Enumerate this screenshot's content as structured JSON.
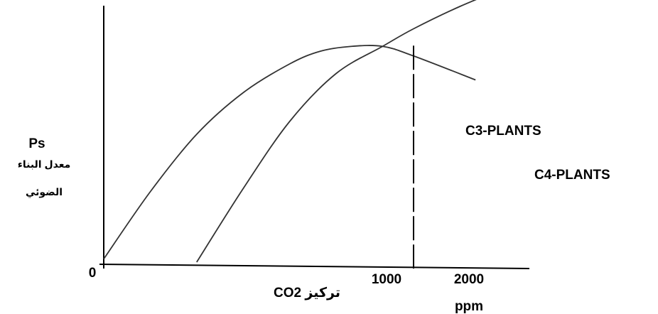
{
  "chart_data": {
    "type": "line",
    "title": "",
    "ylabel_main": "Ps",
    "ylabel_line1": "معدل البناء",
    "ylabel_line2": "الضوئي",
    "xlabel_text": "تركيز CO2",
    "x_unit": "ppm",
    "origin_label": "0",
    "x_ticks": [
      {
        "value": 1000,
        "label": "1000"
      },
      {
        "value": 2000,
        "label": "2000"
      }
    ],
    "xlim": [
      0,
      2700
    ],
    "ylim": [
      0,
      1
    ],
    "grid": false,
    "series": [
      {
        "name": "C3-PLANTS",
        "x": [
          600,
          900,
          1200,
          1500,
          1800,
          2000,
          2300,
          2700
        ],
        "y": [
          0.0,
          0.23,
          0.44,
          0.59,
          0.675,
          0.73,
          0.8,
          0.88
        ]
      },
      {
        "name": "C4-PLANTS",
        "x": [
          0,
          300,
          600,
          900,
          1200,
          1400,
          1600,
          1800,
          2000,
          2400
        ],
        "y": [
          0.01,
          0.22,
          0.4,
          0.53,
          0.62,
          0.66,
          0.675,
          0.675,
          0.645,
          0.57
        ]
      }
    ],
    "annotation": {
      "type": "vertical-dashed-line",
      "x": 2000
    }
  }
}
